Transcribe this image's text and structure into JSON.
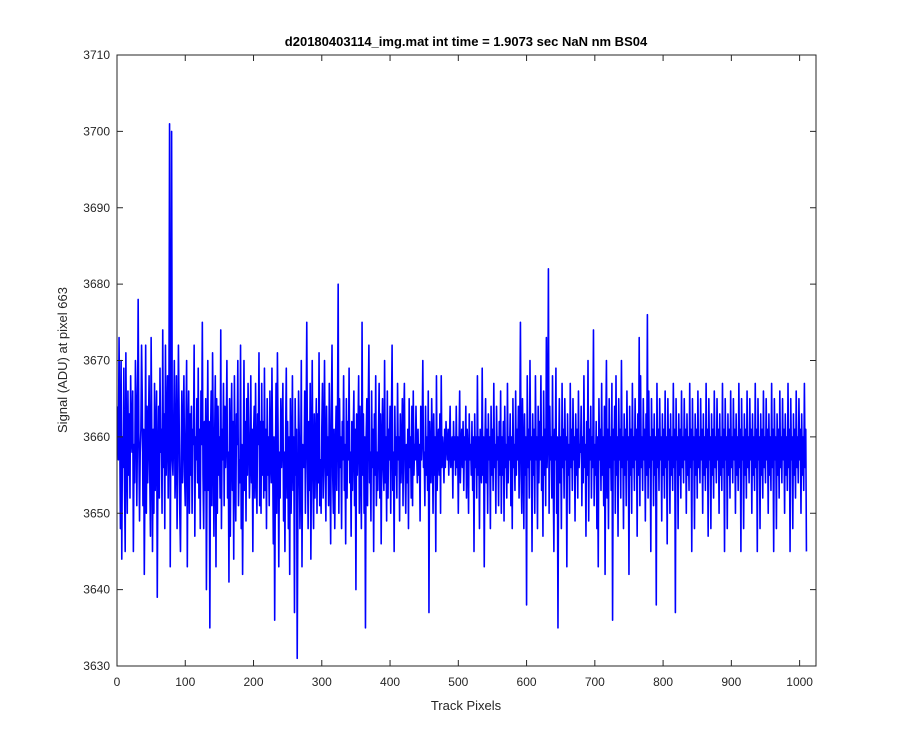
{
  "chart_data": {
    "type": "line",
    "title": "d20180403114_img.mat int time = 1.9073 sec  NaN nm BS04",
    "xlabel": "Track Pixels",
    "ylabel": "Signal (ADU) at pixel 663",
    "xlim": [
      0,
      1024
    ],
    "ylim": [
      3630,
      3710
    ],
    "xticks": [
      0,
      100,
      200,
      300,
      400,
      500,
      600,
      700,
      800,
      900,
      1000
    ],
    "yticks": [
      3630,
      3640,
      3650,
      3660,
      3670,
      3680,
      3690,
      3700,
      3710
    ],
    "grid": false,
    "legend": "none",
    "series": [
      {
        "color": "#0000ff",
        "x_start": 1,
        "x_step": 1,
        "values": [
          3664,
          3657,
          3673,
          3661,
          3648,
          3670,
          3644,
          3660,
          3656,
          3669,
          3654,
          3645,
          3671,
          3658,
          3650,
          3666,
          3655,
          3663,
          3652,
          3668,
          3660,
          3658,
          3666,
          3645,
          3659,
          3654,
          3670,
          3665,
          3651,
          3661,
          3678,
          3660,
          3649,
          3658,
          3661,
          3672,
          3665,
          3651,
          3661,
          3642,
          3655,
          3672,
          3650,
          3664,
          3654,
          3660,
          3668,
          3655,
          3647,
          3673,
          3660,
          3645,
          3661,
          3650,
          3667,
          3653,
          3660,
          3666,
          3639,
          3657,
          3664,
          3652,
          3669,
          3658,
          3661,
          3650,
          3674,
          3656,
          3663,
          3648,
          3672,
          3655,
          3660,
          3668,
          3652,
          3661,
          3701,
          3643,
          3664,
          3700,
          3657,
          3655,
          3661,
          3670,
          3652,
          3657,
          3668,
          3648,
          3657,
          3672,
          3663,
          3650,
          3645,
          3657,
          3666,
          3654,
          3660,
          3668,
          3655,
          3651,
          3661,
          3670,
          3643,
          3660,
          3666,
          3650,
          3663,
          3655,
          3664,
          3650,
          3661,
          3659,
          3672,
          3647,
          3660,
          3657,
          3665,
          3654,
          3669,
          3652,
          3661,
          3648,
          3666,
          3659,
          3675,
          3655,
          3648,
          3662,
          3653,
          3665,
          3640,
          3657,
          3670,
          3653,
          3662,
          3635,
          3660,
          3666,
          3651,
          3671,
          3660,
          3647,
          3659,
          3668,
          3643,
          3665,
          3650,
          3664,
          3655,
          3660,
          3652,
          3674,
          3648,
          3661,
          3657,
          3667,
          3651,
          3664,
          3656,
          3660,
          3670,
          3652,
          3658,
          3641,
          3665,
          3647,
          3660,
          3667,
          3653,
          3662,
          3644,
          3668,
          3656,
          3649,
          3663,
          3659,
          3670,
          3651,
          3657,
          3654,
          3672,
          3648,
          3659,
          3642,
          3656,
          3670,
          3653,
          3662,
          3649,
          3665,
          3655,
          3667,
          3660,
          3652,
          3657,
          3668,
          3654,
          3661,
          3645,
          3660,
          3664,
          3652,
          3667,
          3656,
          3650,
          3663,
          3659,
          3671,
          3651,
          3662,
          3650,
          3667,
          3655,
          3662,
          3652,
          3669,
          3653,
          3661,
          3648,
          3665,
          3655,
          3660,
          3651,
          3666,
          3657,
          3654,
          3669,
          3658,
          3646,
          3660,
          3636,
          3655,
          3667,
          3650,
          3671,
          3660,
          3643,
          3658,
          3652,
          3665,
          3656,
          3660,
          3667,
          3649,
          3658,
          3645,
          3660,
          3669,
          3652,
          3662,
          3648,
          3660,
          3642,
          3665,
          3650,
          3657,
          3668,
          3653,
          3660,
          3637,
          3665,
          3655,
          3661,
          3631,
          3651,
          3666,
          3660,
          3648,
          3654,
          3670,
          3643,
          3659,
          3658,
          3656,
          3666,
          3650,
          3661,
          3675,
          3657,
          3648,
          3662,
          3653,
          3667,
          3644,
          3658,
          3670,
          3655,
          3648,
          3663,
          3652,
          3659,
          3665,
          3650,
          3663,
          3654,
          3671,
          3651,
          3657,
          3650,
          3661,
          3667,
          3652,
          3658,
          3670,
          3656,
          3649,
          3664,
          3655,
          3660,
          3651,
          3667,
          3657,
          3646,
          3663,
          3672,
          3655,
          3650,
          3661,
          3648,
          3658,
          3664,
          3653,
          3662,
          3680,
          3650,
          3665,
          3656,
          3660,
          3648,
          3662,
          3657,
          3668,
          3653,
          3659,
          3646,
          3665,
          3652,
          3662,
          3657,
          3669,
          3654,
          3658,
          3647,
          3662,
          3653,
          3660,
          3666,
          3651,
          3661,
          3640,
          3663,
          3655,
          3660,
          3668,
          3650,
          3664,
          3657,
          3648,
          3675,
          3655,
          3663,
          3650,
          3660,
          3635,
          3660,
          3665,
          3651,
          3663,
          3672,
          3654,
          3658,
          3649,
          3666,
          3656,
          3661,
          3645,
          3663,
          3655,
          3668,
          3651,
          3658,
          3653,
          3660,
          3667,
          3652,
          3663,
          3646,
          3659,
          3665,
          3656,
          3653,
          3670,
          3654,
          3660,
          3649,
          3666,
          3652,
          3661,
          3657,
          3664,
          3650,
          3662,
          3672,
          3653,
          3658,
          3645,
          3664,
          3655,
          3660,
          3652,
          3667,
          3657,
          3660,
          3649,
          3663,
          3654,
          3658,
          3665,
          3651,
          3662,
          3667,
          3656,
          3650,
          3659,
          3654,
          3661,
          3648,
          3665,
          3656,
          3660,
          3652,
          3664,
          3651,
          3666,
          3655,
          3659,
          3657,
          3664,
          3658,
          3654,
          3661,
          3655,
          3659,
          3649,
          3664,
          3657,
          3660,
          3670,
          3656,
          3658,
          3651,
          3664,
          3655,
          3660,
          3653,
          3666,
          3637,
          3662,
          3657,
          3654,
          3665,
          3659,
          3650,
          3663,
          3655,
          3660,
          3645,
          3668,
          3653,
          3658,
          3661,
          3655,
          3663,
          3650,
          3668,
          3656,
          3660,
          3658,
          3654,
          3661,
          3656,
          3662,
          3659,
          3657,
          3661,
          3655,
          3659,
          3664,
          3656,
          3658,
          3660,
          3652,
          3662,
          3657,
          3660,
          3655,
          3664,
          3656,
          3660,
          3650,
          3659,
          3666,
          3654,
          3658,
          3661,
          3656,
          3662,
          3653,
          3660,
          3657,
          3664,
          3652,
          3661,
          3658,
          3650,
          3663,
          3657,
          3659,
          3655,
          3662,
          3653,
          3660,
          3645,
          3663,
          3656,
          3660,
          3652,
          3668,
          3655,
          3660,
          3648,
          3661,
          3657,
          3654,
          3669,
          3655,
          3660,
          3643,
          3659,
          3665,
          3654,
          3661,
          3650,
          3663,
          3657,
          3660,
          3648,
          3664,
          3655,
          3661,
          3653,
          3667,
          3656,
          3659,
          3650,
          3664,
          3657,
          3660,
          3651,
          3662,
          3655,
          3666,
          3650,
          3660,
          3655,
          3662,
          3649,
          3664,
          3656,
          3659,
          3652,
          3667,
          3654,
          3660,
          3657,
          3663,
          3651,
          3660,
          3648,
          3665,
          3656,
          3659,
          3653,
          3666,
          3655,
          3661,
          3657,
          3664,
          3652,
          3660,
          3675,
          3655,
          3650,
          3665,
          3658,
          3648,
          3663,
          3655,
          3660,
          3638,
          3668,
          3656,
          3661,
          3652,
          3670,
          3657,
          3660,
          3645,
          3663,
          3655,
          3661,
          3650,
          3668,
          3657,
          3660,
          3648,
          3664,
          3654,
          3662,
          3657,
          3668,
          3653,
          3660,
          3647,
          3666,
          3655,
          3661,
          3651,
          3673,
          3656,
          3660,
          3682,
          3650,
          3664,
          3657,
          3660,
          3652,
          3668,
          3655,
          3645,
          3661,
          3657,
          3669,
          3650,
          3660,
          3635,
          3657,
          3665,
          3654,
          3660,
          3648,
          3667,
          3656,
          3661,
          3652,
          3665,
          3657,
          3660,
          3643,
          3663,
          3655,
          3659,
          3650,
          3667,
          3656,
          3661,
          3653,
          3665,
          3657,
          3660,
          3649,
          3663,
          3655,
          3661,
          3652,
          3666,
          3656,
          3659,
          3658,
          3664,
          3651,
          3660,
          3654,
          3668,
          3656,
          3659,
          3647,
          3662,
          3655,
          3670,
          3649,
          3661,
          3657,
          3664,
          3652,
          3660,
          3656,
          3674,
          3651,
          3659,
          3655,
          3662,
          3648,
          3660,
          3643,
          3665,
          3657,
          3661,
          3653,
          3667,
          3655,
          3660,
          3651,
          3664,
          3642,
          3660,
          3670,
          3652,
          3661,
          3648,
          3665,
          3656,
          3660,
          3653,
          3667,
          3636,
          3661,
          3657,
          3664,
          3650,
          3668,
          3655,
          3660,
          3647,
          3665,
          3657,
          3661,
          3652,
          3670,
          3656,
          3660,
          3648,
          3663,
          3655,
          3661,
          3651,
          3666,
          3657,
          3660,
          3642,
          3664,
          3655,
          3661,
          3650,
          3667,
          3656,
          3660,
          3653,
          3665,
          3657,
          3661,
          3647,
          3663,
          3655,
          3673,
          3651,
          3668,
          3656,
          3660,
          3653,
          3665,
          3657,
          3661,
          3649,
          3663,
          3655,
          3676,
          3652,
          3666,
          3656,
          3660,
          3645,
          3665,
          3657,
          3661,
          3651,
          3663,
          3655,
          3660,
          3638,
          3667,
          3656,
          3661,
          3653,
          3665,
          3657,
          3660,
          3649,
          3663,
          3655,
          3661,
          3652,
          3666,
          3656,
          3660,
          3646,
          3665,
          3657,
          3661,
          3650,
          3663,
          3655,
          3660,
          3653,
          3667,
          3656,
          3661,
          3637,
          3665,
          3657,
          3660,
          3648,
          3663,
          3655,
          3661,
          3652,
          3666,
          3656,
          3660,
          3654,
          3665,
          3657,
          3661,
          3650,
          3663,
          3655,
          3660,
          3653,
          3667,
          3656,
          3661,
          3645,
          3665,
          3657,
          3660,
          3648,
          3663,
          3655,
          3661,
          3652,
          3666,
          3656,
          3660,
          3654,
          3665,
          3657,
          3661,
          3650,
          3663,
          3655,
          3660,
          3653,
          3667,
          3656,
          3661,
          3647,
          3665,
          3657,
          3660,
          3648,
          3663,
          3655,
          3661,
          3652,
          3666,
          3656,
          3660,
          3654,
          3665,
          3657,
          3661,
          3650,
          3663,
          3655,
          3660,
          3653,
          3667,
          3656,
          3661,
          3645,
          3665,
          3657,
          3660,
          3648,
          3663,
          3655,
          3661,
          3652,
          3666,
          3656,
          3660,
          3654,
          3665,
          3657,
          3661,
          3650,
          3663,
          3655,
          3660,
          3653,
          3667,
          3656,
          3661,
          3645,
          3665,
          3657,
          3660,
          3648,
          3663,
          3655,
          3661,
          3652,
          3666,
          3656,
          3660,
          3654,
          3665,
          3657,
          3661,
          3650,
          3663,
          3655,
          3660,
          3653,
          3667,
          3656,
          3661,
          3645,
          3665,
          3657,
          3660,
          3648,
          3663,
          3655,
          3661,
          3652,
          3666,
          3656,
          3660,
          3654,
          3665,
          3657,
          3661,
          3650,
          3663,
          3655,
          3660,
          3653,
          3667,
          3656,
          3661,
          3645,
          3665,
          3657,
          3660,
          3648,
          3663,
          3655,
          3661,
          3652,
          3666,
          3656,
          3660,
          3654,
          3665,
          3657,
          3661,
          3650,
          3663,
          3655,
          3660,
          3653,
          3667,
          3656,
          3661,
          3645,
          3665,
          3657,
          3660,
          3648,
          3663,
          3655,
          3661,
          3652,
          3666,
          3656,
          3660,
          3654,
          3665,
          3657,
          3661,
          3650,
          3663,
          3655,
          3660,
          3653,
          3667,
          3656,
          3661,
          3645
        ]
      }
    ]
  }
}
